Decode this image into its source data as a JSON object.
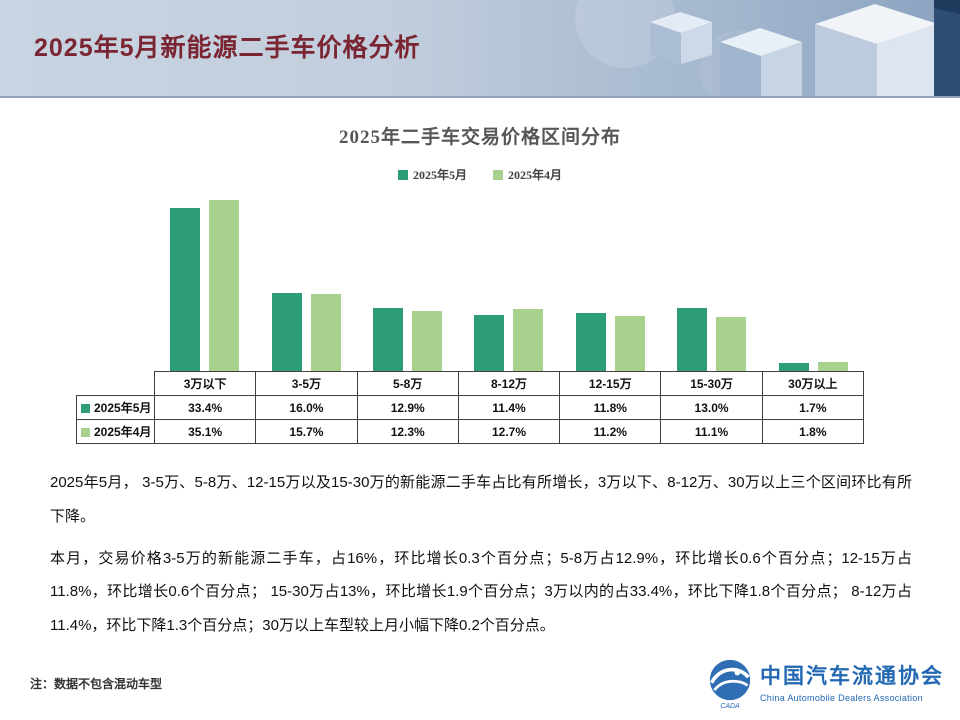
{
  "header": {
    "title": "2025年5月新能源二手车价格分析"
  },
  "chart_data": {
    "type": "bar",
    "title": "2025年二手车交易价格区间分布",
    "categories": [
      "3万以下",
      "3-5万",
      "5-8万",
      "8-12万",
      "12-15万",
      "15-30万",
      "30万以上"
    ],
    "series": [
      {
        "name": "2025年5月",
        "color": "#2e9e77",
        "values": [
          33.4,
          16.0,
          12.9,
          11.4,
          11.8,
          13.0,
          1.7
        ]
      },
      {
        "name": "2025年4月",
        "color": "#a9d18e",
        "values": [
          35.1,
          15.7,
          12.3,
          12.7,
          11.2,
          11.1,
          1.8
        ]
      }
    ],
    "value_suffix": "%",
    "ylim": [
      0,
      36.5
    ],
    "grid": false,
    "legend_position": "top",
    "data_table_shown": true
  },
  "body": {
    "paragraph1": "2025年5月， 3-5万、5-8万、12-15万以及15-30万的新能源二手车占比有所增长，3万以下、8-12万、30万以上三个区间环比有所下降。",
    "paragraph2": "本月，交易价格3-5万的新能源二手车，占16%，环比增长0.3个百分点；5-8万占12.9%，环比增长0.6个百分点；12-15万占11.8%，环比增长0.6个百分点； 15-30万占13%，环比增长1.9个百分点；3万以内的占33.4%，环比下降1.8个百分点； 8-12万占11.4%，环比下降1.3个百分点；30万以上车型较上月小幅下降0.2个百分点。"
  },
  "footer": {
    "note": "注：数据不包含混动车型",
    "logo_text": "中国汽车流通协会",
    "logo_subtext": "China Automobile Dealers Association",
    "logo_mark": "CADA"
  },
  "colors": {
    "title": "#7a2531",
    "logo": "#2368b2"
  }
}
